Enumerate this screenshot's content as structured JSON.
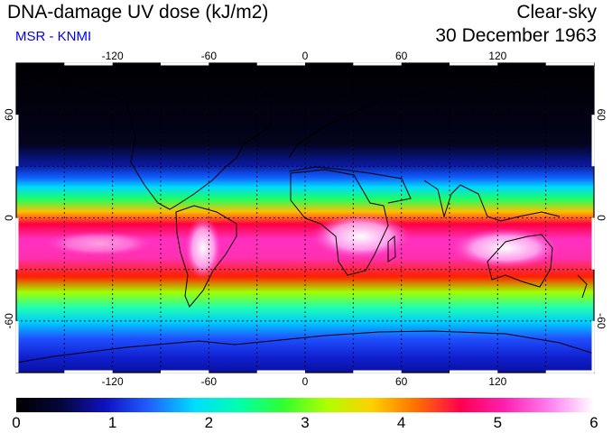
{
  "header": {
    "title": "DNA-damage UV dose (kJ/m2)",
    "credit": "MSR - KNMI",
    "mode": "Clear-sky",
    "date": "30 December 1963"
  },
  "map": {
    "projection": "equirectangular",
    "lon_range": [
      -180,
      180
    ],
    "lat_range": [
      -90,
      90
    ],
    "lon_ticks": [
      -120,
      -60,
      0,
      60,
      120
    ],
    "lat_ticks": [
      60,
      0,
      -60
    ],
    "grid": "dotted every 30 degrees",
    "lon_tick_labels": [
      "-120",
      "-60",
      "0",
      "60",
      "120"
    ],
    "lat_tick_labels": [
      "60",
      "0",
      "-60"
    ],
    "field": "DNA-damage UV dose, clear-sky",
    "approx_max_value": 6
  },
  "colorbar": {
    "min": 0,
    "max": 6,
    "ticks": [
      "0",
      "1",
      "2",
      "3",
      "4",
      "5",
      "6"
    ],
    "colors": [
      "#000000",
      "#06063a",
      "#1010c0",
      "#2060ff",
      "#00dcff",
      "#00ffb0",
      "#30ff30",
      "#b0ff00",
      "#ffd000",
      "#ff7000",
      "#ff0050",
      "#ff20b0",
      "#ff80f0",
      "#ffffff"
    ]
  },
  "colors": {
    "credit_text": "#0000ee"
  }
}
